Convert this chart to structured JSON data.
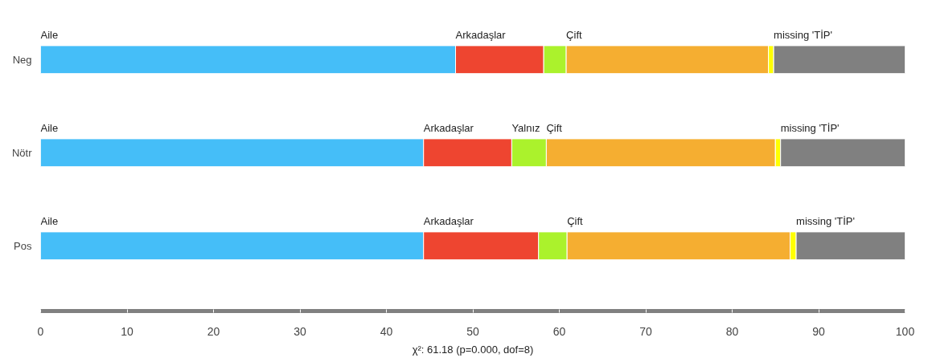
{
  "chart_data": {
    "type": "bar",
    "orientation": "horizontal",
    "stacked": true,
    "categories": [
      "Neg",
      "Nötr",
      "Pos"
    ],
    "series": [
      {
        "color": "#45bef8",
        "values": [
          48.0,
          44.3,
          44.3
        ]
      },
      {
        "color": "#ee4530",
        "values": [
          10.2,
          10.2,
          13.3
        ]
      },
      {
        "color": "#abf22c",
        "values": [
          2.6,
          4.0,
          3.3
        ]
      },
      {
        "color": "#f5ae31",
        "values": [
          23.4,
          26.5,
          25.8
        ]
      },
      {
        "color": "#ffff00",
        "values": [
          0.6,
          0.6,
          0.7
        ]
      },
      {
        "color": "#808080",
        "values": [
          15.2,
          14.4,
          12.6
        ]
      }
    ],
    "xlim": [
      0,
      100
    ],
    "xticks": [
      0,
      10,
      20,
      30,
      40,
      50,
      60,
      70,
      80,
      90,
      100
    ],
    "grid": false,
    "annotations": [
      {
        "text": "Aile",
        "x": 0,
        "y": "Neg"
      },
      {
        "text": "Arkadaşlar",
        "x": 48.0,
        "y": "Neg"
      },
      {
        "text": "Çift",
        "x": 60.8,
        "y": "Neg"
      },
      {
        "text": "missing 'TİP'",
        "x": 84.8,
        "y": "Neg"
      },
      {
        "text": "Aile",
        "x": 0,
        "y": "Nötr"
      },
      {
        "text": "Arkadaşlar",
        "x": 44.3,
        "y": "Nötr"
      },
      {
        "text": "Yalnız",
        "x": 54.5,
        "y": "Nötr"
      },
      {
        "text": "Çift",
        "x": 58.5,
        "y": "Nötr"
      },
      {
        "text": "missing 'TİP'",
        "x": 85.6,
        "y": "Nötr"
      },
      {
        "text": "Aile",
        "x": 0,
        "y": "Pos"
      },
      {
        "text": "Arkadaşlar",
        "x": 44.3,
        "y": "Pos"
      },
      {
        "text": "Çift",
        "x": 60.9,
        "y": "Pos"
      },
      {
        "text": "missing 'TİP'",
        "x": 87.4,
        "y": "Pos"
      },
      "χ²: 61.18 (p=0.000, dof=8)"
    ]
  }
}
